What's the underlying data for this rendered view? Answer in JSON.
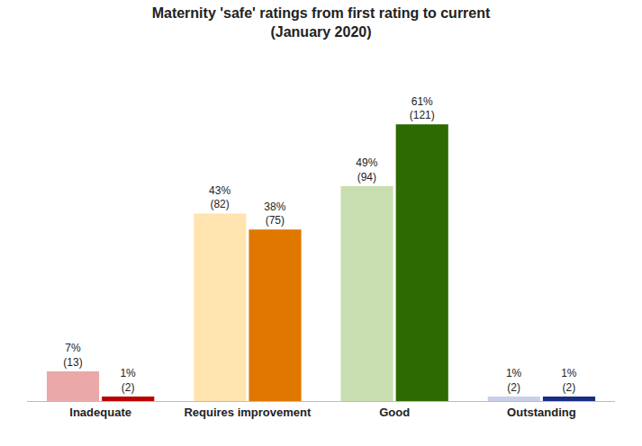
{
  "chart_data": {
    "type": "bar",
    "title": "Maternity 'safe' ratings from first rating to current\n(January 2020)",
    "categories": [
      "Inadequate",
      "Requires improvement",
      "Good",
      "Outstanding"
    ],
    "series": [
      {
        "colors": [
          "#EBA8A8",
          "#FFE4B0",
          "#C8DEB0",
          "#C8D0E8"
        ],
        "values": [
          13,
          82,
          94,
          2
        ],
        "value_labels": [
          "7%\n(13)",
          "43%\n(82)",
          "49%\n(94)",
          "1%\n(2)"
        ]
      },
      {
        "colors": [
          "#BB0000",
          "#E07800",
          "#2D6A00",
          "#1A2D80"
        ],
        "values": [
          2,
          75,
          121,
          2
        ],
        "value_labels": [
          "1%\n(2)",
          "38%\n(75)",
          "61%\n(121)",
          "1%\n(2)"
        ]
      }
    ],
    "ylim": [
      0,
      140
    ],
    "data_labels": true,
    "tick_labels": "x",
    "grid": false
  }
}
